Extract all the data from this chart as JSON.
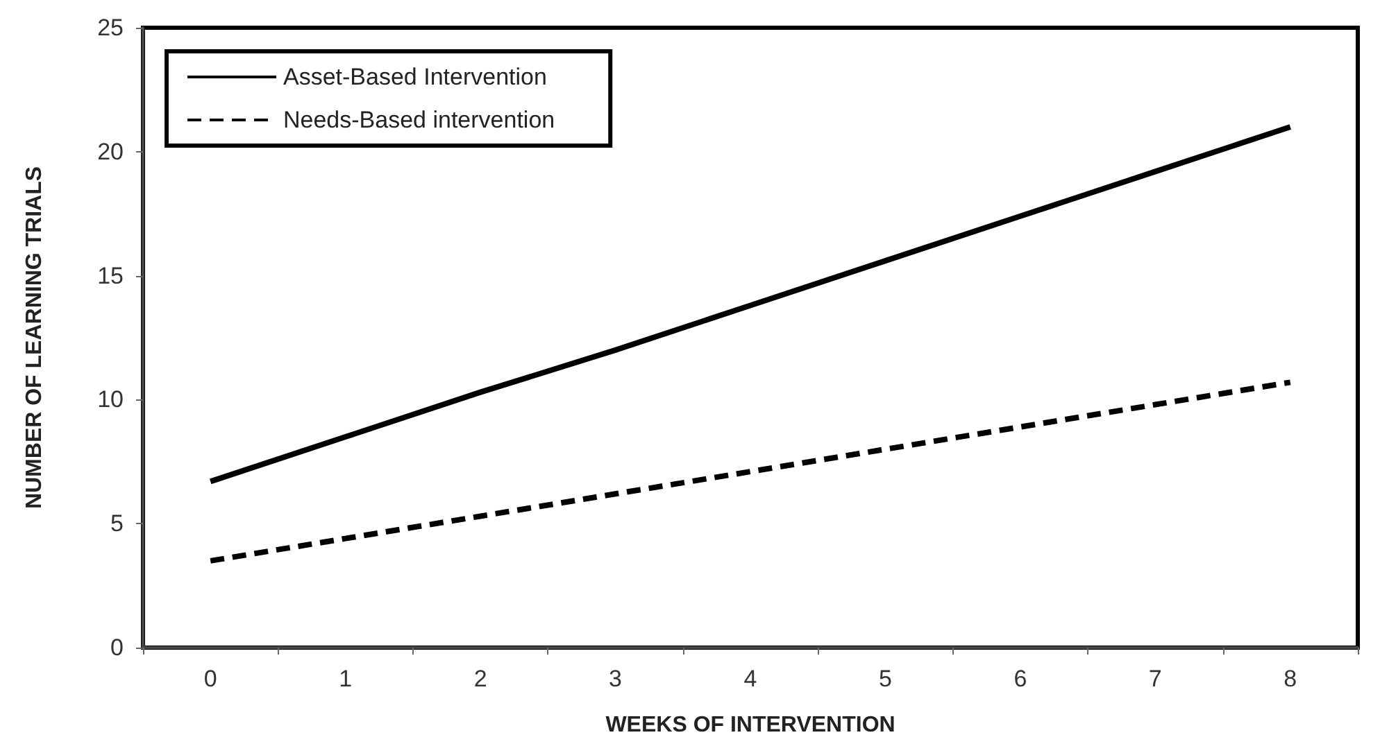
{
  "chart_data": {
    "type": "line",
    "xlabel": "WEEKS OF INTERVENTION",
    "ylabel": "NUMBER OF LEARNING TRIALS",
    "categories": [
      "0",
      "1",
      "2",
      "3",
      "4",
      "5",
      "6",
      "7",
      "8"
    ],
    "series": [
      {
        "name": "Asset-Based Intervention",
        "color": "#000000",
        "line_style": "solid",
        "values": [
          6.7,
          8.5,
          10.3,
          12.0,
          13.8,
          15.6,
          17.4,
          19.2,
          21.0
        ]
      },
      {
        "name": "Needs-Based intervention",
        "color": "#000000",
        "line_style": "dashed",
        "values": [
          3.5,
          4.4,
          5.3,
          6.2,
          7.1,
          8.0,
          8.9,
          9.8,
          10.7
        ]
      }
    ],
    "ylim": [
      0,
      25
    ],
    "yticks": [
      0,
      5,
      10,
      15,
      20,
      25
    ],
    "grid": false,
    "legend": "top left",
    "marker": "none"
  }
}
